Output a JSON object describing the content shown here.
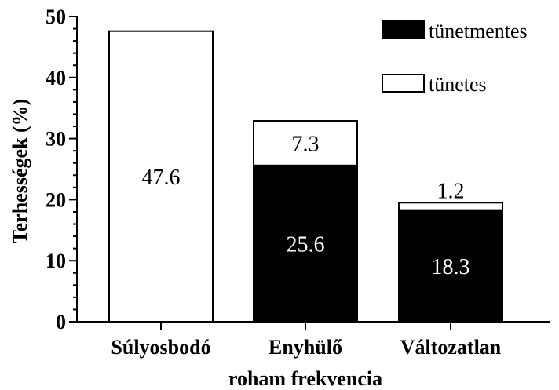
{
  "chart_data": {
    "type": "bar",
    "stacked": true,
    "categories": [
      "Súlyosbodó",
      "Enyhülő",
      "Változatlan"
    ],
    "series": [
      {
        "name": "tünetmentes",
        "color": "#000000",
        "values": [
          0,
          25.6,
          18.3
        ],
        "labels": [
          "",
          "25.6",
          "18.3"
        ]
      },
      {
        "name": "tünetes",
        "color": "#ffffff",
        "values": [
          47.6,
          7.3,
          1.2
        ],
        "labels": [
          "47.6",
          "7.3",
          "1.2"
        ]
      }
    ],
    "title": "",
    "xlabel": "roham frekvencia",
    "ylabel": "Terhességek (%)",
    "ylim": [
      0,
      50
    ],
    "yticks": [
      "0",
      "10",
      "20",
      "30",
      "40",
      "50"
    ],
    "grid": false,
    "legend_position": "top-right"
  }
}
